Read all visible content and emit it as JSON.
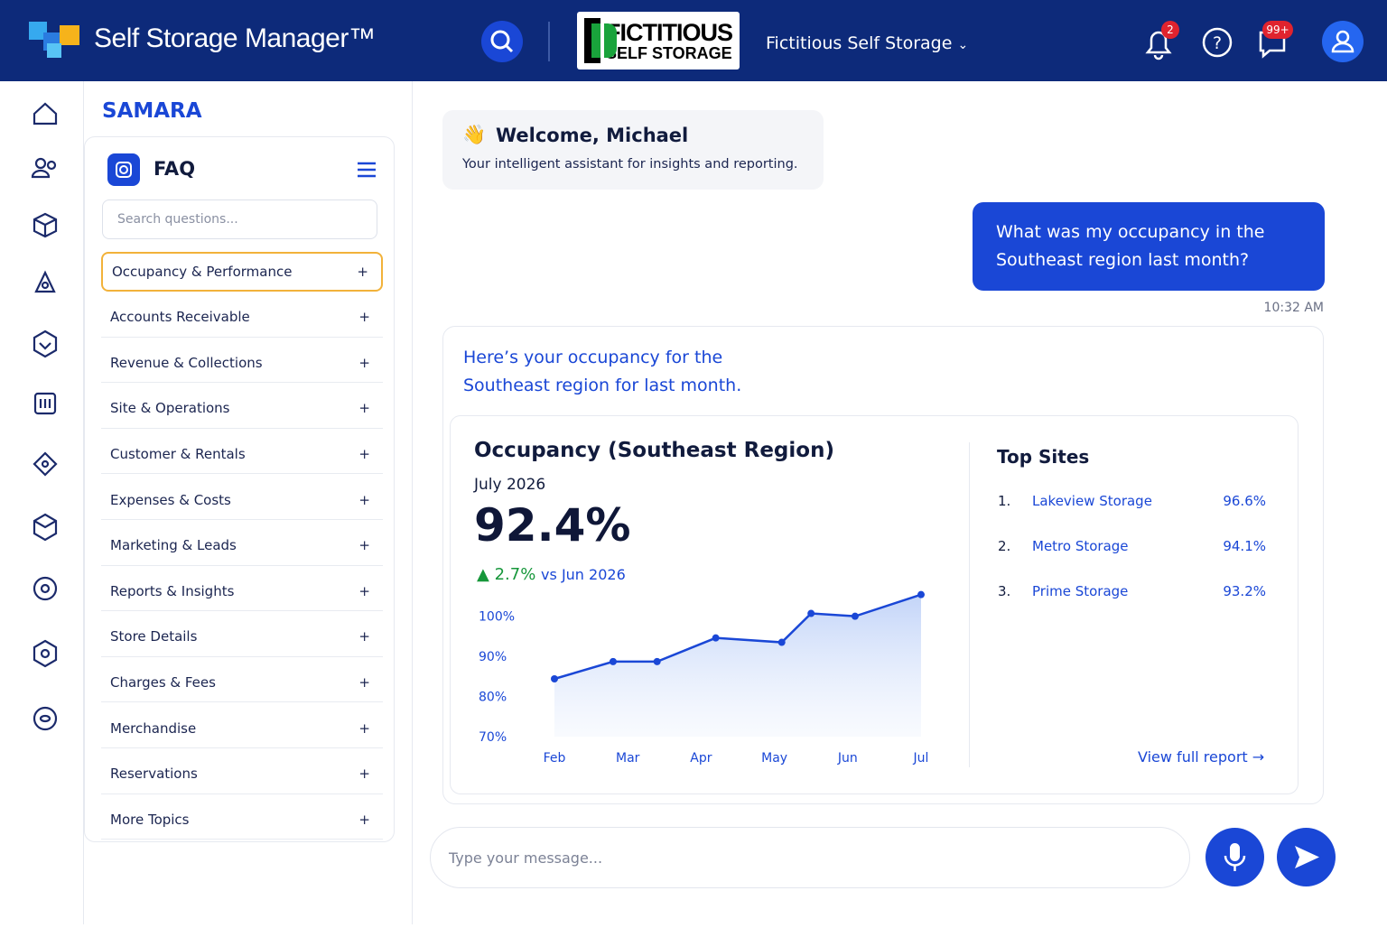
{
  "header": {
    "app_name": "Self Storage Manager™",
    "brand_logo": {
      "line1": "FICTITIOUS",
      "line2": "SELF STORAGE"
    },
    "organization": "Fictitious Self Storage",
    "notification_badge": "2",
    "message_badge": "99+"
  },
  "sidebar": {
    "title": "SAMARA",
    "faq": {
      "title": "FAQ",
      "search_placeholder": "Search questions...",
      "topics": [
        "Occupancy & Performance",
        "Accounts Receivable",
        "Revenue & Collections",
        "Site & Operations",
        "Customer & Rentals",
        "Expenses & Costs",
        "Marketing & Leads",
        "Reports & Insights",
        "Store Details",
        "Charges & Fees",
        "Merchandise",
        "Reservations",
        "More Topics"
      ]
    }
  },
  "chat": {
    "welcome": {
      "title": "Welcome, Michael",
      "subtitle": "Your intelligent assistant for insights and reporting."
    },
    "user_message": "What was my occupancy in the Southeast region last month?",
    "timestamp": "10:32 AM",
    "reply": "Here’s your occupancy for the Southeast region for last month.",
    "card": {
      "title": "Occupancy (Southeast Region)",
      "period": "July 2026",
      "kpi": "92.4%",
      "change": "2.7%",
      "comparison": "vs Jun 2026",
      "top_sites": {
        "title": "Top Sites",
        "sites": [
          {
            "rank": "1.",
            "name": "Lakeview Storage",
            "value": "96.6%"
          },
          {
            "rank": "2.",
            "name": "Metro Storage",
            "value": "94.1%"
          },
          {
            "rank": "3.",
            "name": "Prime Storage",
            "value": "93.2%"
          }
        ],
        "link": "View full report"
      }
    },
    "input_placeholder": "Type your message..."
  },
  "chart_data": {
    "type": "line",
    "x": [
      0,
      0.8,
      1.4,
      2.2,
      3.1,
      3.5,
      4.1,
      5
    ],
    "values": [
      84.4,
      88.7,
      88.7,
      94.6,
      93.5,
      100.7,
      100,
      105.4
    ],
    "color": "#1a47d6",
    "xlim": [
      0,
      5
    ],
    "xticks": [
      {
        "value": 0,
        "label": "Feb"
      },
      {
        "value": 1,
        "label": "Mar"
      },
      {
        "value": 2,
        "label": "Apr"
      },
      {
        "value": 3,
        "label": "May"
      },
      {
        "value": 4,
        "label": "Jun"
      },
      {
        "value": 5,
        "label": "Jul"
      }
    ],
    "ylim": [
      70,
      106
    ],
    "yticks": [
      {
        "value": 70,
        "label": "70%"
      },
      {
        "value": 80,
        "label": "80%"
      },
      {
        "value": 90,
        "label": "90%"
      },
      {
        "value": 100,
        "label": "100%"
      }
    ],
    "grid": false
  }
}
